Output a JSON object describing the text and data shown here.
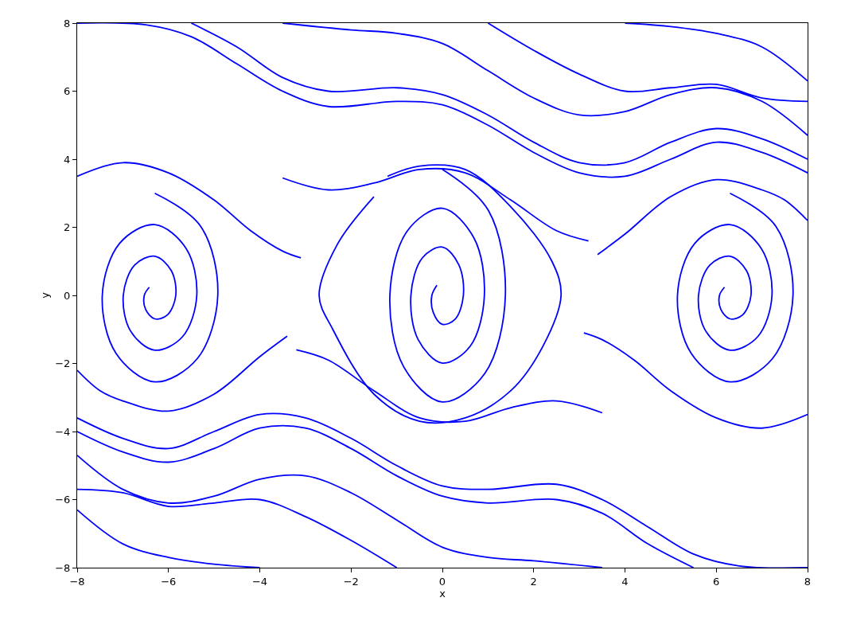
{
  "chart_data": {
    "type": "line",
    "xlabel": "x",
    "ylabel": "y",
    "xlim": [
      -8,
      8
    ],
    "ylim": [
      -8,
      8
    ],
    "xticks": [
      {
        "value": -8,
        "label": "−8"
      },
      {
        "value": -6,
        "label": "−6"
      },
      {
        "value": -4,
        "label": "−4"
      },
      {
        "value": -2,
        "label": "−2"
      },
      0,
      2,
      4,
      6,
      8
    ],
    "yticks": [
      {
        "value": -8,
        "label": "−8"
      },
      {
        "value": -6,
        "label": "−6"
      },
      {
        "value": -4,
        "label": "−4"
      },
      {
        "value": -2,
        "label": "−2"
      },
      0,
      2,
      4,
      6,
      8
    ],
    "series": [
      {
        "color": "#0000ff",
        "x": [
          -8,
          -6.5,
          -5.5,
          -4.5,
          -3.5,
          -2.5,
          -1,
          0,
          1,
          2,
          3,
          4,
          5,
          6,
          7,
          8
        ],
        "values": [
          8,
          7.95,
          7.6,
          6.8,
          6.0,
          5.55,
          5.7,
          5.6,
          5.0,
          4.2,
          3.6,
          3.5,
          4.0,
          4.5,
          4.2,
          3.6
        ]
      },
      {
        "color": "#0000ff",
        "x": [
          -5.5,
          -4.5,
          -3.5,
          -2.5,
          -1,
          0,
          1,
          2,
          3,
          4,
          5,
          6,
          7,
          8
        ],
        "values": [
          8,
          7.3,
          6.4,
          6.0,
          6.1,
          5.9,
          5.3,
          4.5,
          3.9,
          3.9,
          4.5,
          4.9,
          4.6,
          4.0
        ]
      },
      {
        "color": "#0000ff",
        "x": [
          -3.5,
          -2,
          -1,
          0,
          1,
          2,
          3,
          4,
          5,
          6,
          7,
          8
        ],
        "values": [
          8,
          7.8,
          7.7,
          7.4,
          6.6,
          5.8,
          5.3,
          5.4,
          5.9,
          6.1,
          5.7,
          4.7
        ]
      },
      {
        "color": "#0000ff",
        "x": [
          1,
          2,
          3,
          4,
          5,
          6,
          7,
          8
        ],
        "values": [
          8,
          7.2,
          6.5,
          6.0,
          6.1,
          6.2,
          5.8,
          5.7
        ]
      },
      {
        "color": "#0000ff",
        "x": [
          4,
          5,
          6,
          7,
          8
        ],
        "values": [
          8,
          7.9,
          7.7,
          7.3,
          6.3
        ]
      },
      {
        "color": "#0000ff",
        "x": [
          -8,
          -7,
          -6,
          -5,
          -4.2,
          -3.5,
          -3.1
        ],
        "values": [
          3.5,
          3.9,
          3.6,
          2.8,
          1.9,
          1.3,
          1.1
        ]
      },
      {
        "color": "#0000ff",
        "x": [
          -3.5,
          -2.5,
          -1.5,
          -0.5,
          0.5,
          1.5,
          2.5,
          3.2
        ],
        "values": [
          3.45,
          3.1,
          3.3,
          3.7,
          3.6,
          2.8,
          1.9,
          1.6
        ]
      },
      {
        "color": "#0000ff",
        "x": [
          3.4,
          4,
          5,
          6,
          7,
          7.5,
          8
        ],
        "values": [
          1.2,
          1.8,
          2.9,
          3.4,
          3.1,
          2.8,
          2.2
        ]
      },
      {
        "color": "#0000ff",
        "x": [
          8,
          6.5,
          5.5,
          4.5,
          3.5,
          2.5,
          1,
          0,
          -1,
          -2,
          -3,
          -4,
          -5,
          -6,
          -7,
          -8
        ],
        "values": [
          -8,
          -7.95,
          -7.6,
          -6.8,
          -6.0,
          -5.55,
          -5.7,
          -5.6,
          -5.0,
          -4.2,
          -3.6,
          -3.5,
          -4.0,
          -4.5,
          -4.2,
          -3.6
        ]
      },
      {
        "color": "#0000ff",
        "x": [
          5.5,
          4.5,
          3.5,
          2.5,
          1,
          0,
          -1,
          -2,
          -3,
          -4,
          -5,
          -6,
          -7,
          -8
        ],
        "values": [
          -8,
          -7.3,
          -6.4,
          -6.0,
          -6.1,
          -5.9,
          -5.3,
          -4.5,
          -3.9,
          -3.9,
          -4.5,
          -4.9,
          -4.6,
          -4.0
        ]
      },
      {
        "color": "#0000ff",
        "x": [
          3.5,
          2,
          1,
          0,
          -1,
          -2,
          -3,
          -4,
          -5,
          -6,
          -7,
          -8
        ],
        "values": [
          -8,
          -7.8,
          -7.7,
          -7.4,
          -6.6,
          -5.8,
          -5.3,
          -5.4,
          -5.9,
          -6.1,
          -5.7,
          -4.7
        ]
      },
      {
        "color": "#0000ff",
        "x": [
          -1,
          -2,
          -3,
          -4,
          -5,
          -6,
          -7,
          -8
        ],
        "values": [
          -8,
          -7.2,
          -6.5,
          -6.0,
          -6.1,
          -6.2,
          -5.8,
          -5.7
        ]
      },
      {
        "color": "#0000ff",
        "x": [
          -4,
          -5,
          -6,
          -7,
          -8
        ],
        "values": [
          -8,
          -7.9,
          -7.7,
          -7.3,
          -6.3
        ]
      },
      {
        "color": "#0000ff",
        "x": [
          8,
          7,
          6,
          5,
          4.2,
          3.5,
          3.1
        ],
        "values": [
          -3.5,
          -3.9,
          -3.6,
          -2.8,
          -1.9,
          -1.3,
          -1.1
        ]
      },
      {
        "color": "#0000ff",
        "x": [
          3.5,
          2.5,
          1.5,
          0.5,
          -0.5,
          -1.5,
          -2.5,
          -3.2
        ],
        "values": [
          -3.45,
          -3.1,
          -3.3,
          -3.7,
          -3.6,
          -2.8,
          -1.9,
          -1.6
        ]
      },
      {
        "color": "#0000ff",
        "x": [
          -3.4,
          -4,
          -5,
          -6,
          -7,
          -7.5,
          -8
        ],
        "values": [
          -1.2,
          -1.8,
          -2.9,
          -3.4,
          -3.1,
          -2.8,
          -2.2
        ]
      },
      {
        "color": "#0000ff",
        "x": [
          -1.2,
          -0.5,
          0.5,
          1.5,
          2.4,
          2.6,
          2.2,
          1.5,
          0.5,
          -0.5,
          -1.5,
          -2.4,
          -2.7,
          -2.3,
          -1.5
        ],
        "values": [
          3.5,
          3.8,
          3.7,
          2.6,
          1.0,
          0,
          -1.5,
          -2.8,
          -3.6,
          -3.7,
          -2.9,
          -1.0,
          0,
          1.5,
          2.9
        ]
      },
      {
        "color": "#0000ff",
        "x": [
          0,
          1.01,
          1.38,
          0.93,
          0,
          -0.85,
          -1.15,
          -0.77,
          0,
          0.69,
          0.92,
          0.61,
          0,
          -0.53,
          -0.69,
          -0.44,
          0,
          0.36,
          0.46,
          0.28,
          0,
          -0.2,
          -0.23,
          -0.12
        ],
        "values": [
          3.7,
          2.49,
          0,
          -2.29,
          -3.13,
          -2.09,
          0,
          1.89,
          2.56,
          1.69,
          0,
          -1.49,
          -1.99,
          -1.3,
          0,
          1.1,
          1.42,
          0.9,
          0,
          -0.7,
          -0.85,
          -0.5,
          0,
          0.3
        ]
      },
      {
        "color": "#0000ff",
        "x": [
          -6.3,
          -5.29,
          -4.92,
          -5.37,
          -6.3,
          -7.15,
          -7.45,
          -7.07,
          -6.3,
          -5.61,
          -5.38,
          -5.69,
          -6.3,
          -6.83,
          -6.99,
          -6.74,
          -6.3,
          -5.94,
          -5.84,
          -6.02,
          -6.3,
          -6.5,
          -6.53,
          -6.42
        ],
        "values": [
          3.0,
          2.02,
          0,
          -1.86,
          -2.54,
          -1.7,
          0,
          1.53,
          2.08,
          1.37,
          0,
          -1.21,
          -1.61,
          -1.05,
          0,
          0.89,
          1.15,
          0.73,
          0,
          -0.57,
          -0.69,
          -0.41,
          0,
          0.24
        ]
      },
      {
        "color": "#0000ff",
        "x": [
          6.3,
          7.31,
          7.68,
          7.23,
          6.3,
          5.45,
          5.15,
          5.53,
          6.3,
          6.99,
          7.22,
          6.91,
          6.3,
          5.77,
          5.61,
          5.86,
          6.3,
          6.66,
          6.76,
          6.58,
          6.3,
          6.1,
          6.07,
          6.18
        ],
        "values": [
          3.0,
          2.02,
          0,
          -1.86,
          -2.54,
          -1.7,
          0,
          1.53,
          2.08,
          1.37,
          0,
          -1.21,
          -1.61,
          -1.05,
          0,
          0.89,
          1.15,
          0.73,
          0,
          -0.57,
          -0.69,
          -0.41,
          0,
          0.24
        ]
      }
    ]
  }
}
